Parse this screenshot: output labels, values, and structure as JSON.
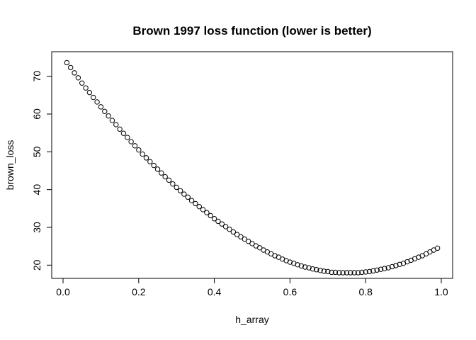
{
  "chart_data": {
    "type": "scatter",
    "title": "Brown 1997 loss function (lower is better)",
    "xlabel": "h_array",
    "ylabel": "brown_loss",
    "xlim": [
      -0.03,
      1.03
    ],
    "ylim": [
      16.5,
      76.5
    ],
    "xticks": [
      "0.0",
      "0.2",
      "0.4",
      "0.6",
      "0.8",
      "1.0"
    ],
    "xtick_values": [
      0,
      0.2,
      0.4,
      0.6,
      0.8,
      1.0
    ],
    "yticks": [
      "20",
      "30",
      "40",
      "50",
      "60",
      "70"
    ],
    "ytick_values": [
      20,
      30,
      40,
      50,
      60,
      70
    ],
    "marker": "open-circle",
    "grid": false,
    "x": [
      0.01,
      0.02,
      0.03,
      0.04,
      0.05,
      0.06,
      0.07,
      0.08,
      0.09,
      0.1,
      0.11,
      0.12,
      0.13,
      0.14,
      0.15,
      0.16,
      0.17,
      0.18,
      0.19,
      0.2,
      0.21,
      0.22,
      0.23,
      0.24,
      0.25,
      0.26,
      0.27,
      0.28,
      0.29,
      0.3,
      0.31,
      0.32,
      0.33,
      0.34,
      0.35,
      0.36,
      0.37,
      0.38,
      0.39,
      0.4,
      0.41,
      0.42,
      0.43,
      0.44,
      0.45,
      0.46,
      0.47,
      0.48,
      0.49,
      0.5,
      0.51,
      0.52,
      0.53,
      0.54,
      0.55,
      0.56,
      0.57,
      0.58,
      0.59,
      0.6,
      0.61,
      0.62,
      0.63,
      0.64,
      0.65,
      0.66,
      0.67,
      0.68,
      0.69,
      0.7,
      0.71,
      0.72,
      0.73,
      0.74,
      0.75,
      0.76,
      0.77,
      0.78,
      0.79,
      0.8,
      0.81,
      0.82,
      0.83,
      0.84,
      0.85,
      0.86,
      0.87,
      0.88,
      0.89,
      0.9,
      0.91,
      0.92,
      0.93,
      0.94,
      0.95,
      0.96,
      0.97,
      0.98,
      0.99
    ],
    "y": [
      73.6,
      72.3,
      70.9,
      69.6,
      68.2,
      66.9,
      65.7,
      64.4,
      63.2,
      61.9,
      60.7,
      59.5,
      58.3,
      57.2,
      56.0,
      54.9,
      53.8,
      52.7,
      51.6,
      50.5,
      49.4,
      48.4,
      47.4,
      46.4,
      45.4,
      44.4,
      43.4,
      42.5,
      41.5,
      40.6,
      39.7,
      38.8,
      38.0,
      37.1,
      36.3,
      35.5,
      34.7,
      33.9,
      33.1,
      32.3,
      31.6,
      30.9,
      30.2,
      29.5,
      28.8,
      28.1,
      27.5,
      26.9,
      26.3,
      25.7,
      25.1,
      24.6,
      24.0,
      23.5,
      23.0,
      22.5,
      22.1,
      21.6,
      21.2,
      20.8,
      20.5,
      20.1,
      19.8,
      19.5,
      19.3,
      19.0,
      18.8,
      18.6,
      18.4,
      18.3,
      18.1,
      18.1,
      18.0,
      18.0,
      18.0,
      18.0,
      18.0,
      18.0,
      18.1,
      18.2,
      18.3,
      18.5,
      18.7,
      18.9,
      19.1,
      19.3,
      19.6,
      19.9,
      20.2,
      20.5,
      20.9,
      21.3,
      21.7,
      22.1,
      22.5,
      23.0,
      23.5,
      24.0,
      24.5
    ]
  }
}
